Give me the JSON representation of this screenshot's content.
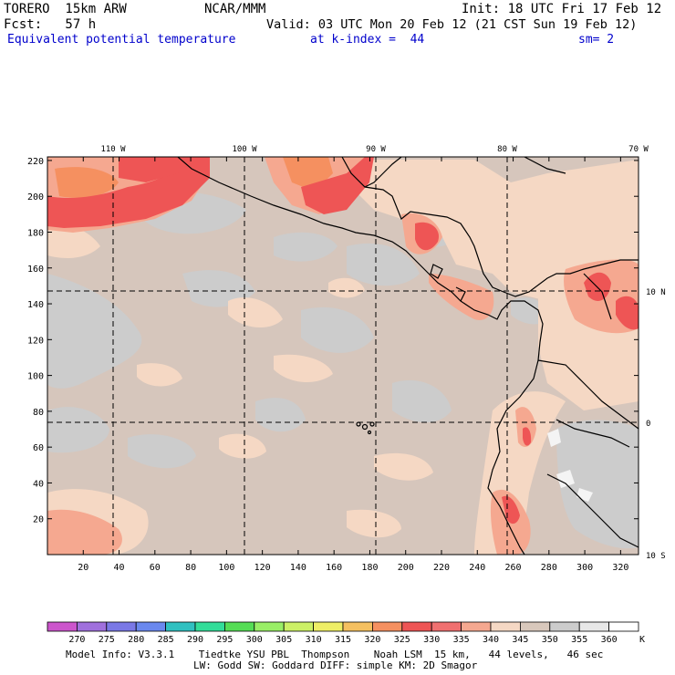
{
  "header": {
    "model": "TORERO  15km ARW",
    "center": "NCAR/MMM",
    "init": "Init: 18 UTC Fri 17 Feb 12",
    "fcst": "Fcst:   57 h",
    "valid": "Valid: 03 UTC Mon 20 Feb 12 (21 CST Sun 19 Feb 12)",
    "field": "Equivalent potential temperature",
    "level": "at k-index =  44",
    "smoothing": "sm= 2"
  },
  "map": {
    "top_lon_labels": [
      "110 W",
      "100 W",
      "90 W",
      "80 W",
      "70 W"
    ],
    "right_lat_labels": [
      "10 N",
      "0",
      "10 S"
    ],
    "y_grid_labels": [
      "220",
      "200",
      "180",
      "160",
      "140",
      "120",
      "100",
      "80",
      "60",
      "40",
      "20"
    ],
    "x_grid_labels": [
      "20",
      "40",
      "60",
      "80",
      "100",
      "120",
      "140",
      "160",
      "180",
      "200",
      "220",
      "240",
      "260",
      "280",
      "300",
      "320"
    ]
  },
  "colorbar": {
    "labels": [
      "270",
      "275",
      "280",
      "285",
      "290",
      "295",
      "300",
      "305",
      "310",
      "315",
      "320",
      "325",
      "330",
      "335",
      "340",
      "345",
      "350",
      "355",
      "360"
    ],
    "unit": "K",
    "colors": [
      "#cc55cc",
      "#a070dd",
      "#7a78e6",
      "#6a88ee",
      "#30c0c0",
      "#33dd99",
      "#55dd55",
      "#99ee66",
      "#ccf066",
      "#eeee66",
      "#f5c060",
      "#f59060",
      "#ee5555",
      "#f07070",
      "#f5a890",
      "#f5d8c4",
      "#d8c8bc",
      "#cccccc",
      "#e8e8e8",
      "#ffffff"
    ]
  },
  "footer": {
    "line1": "Model Info: V3.3.1    Tiedtke YSU PBL  Thompson    Noah LSM  15 km,   44 levels,   46 sec",
    "line2": "LW: Godd SW: Goddard DIFF: simple KM: 2D Smagor"
  }
}
